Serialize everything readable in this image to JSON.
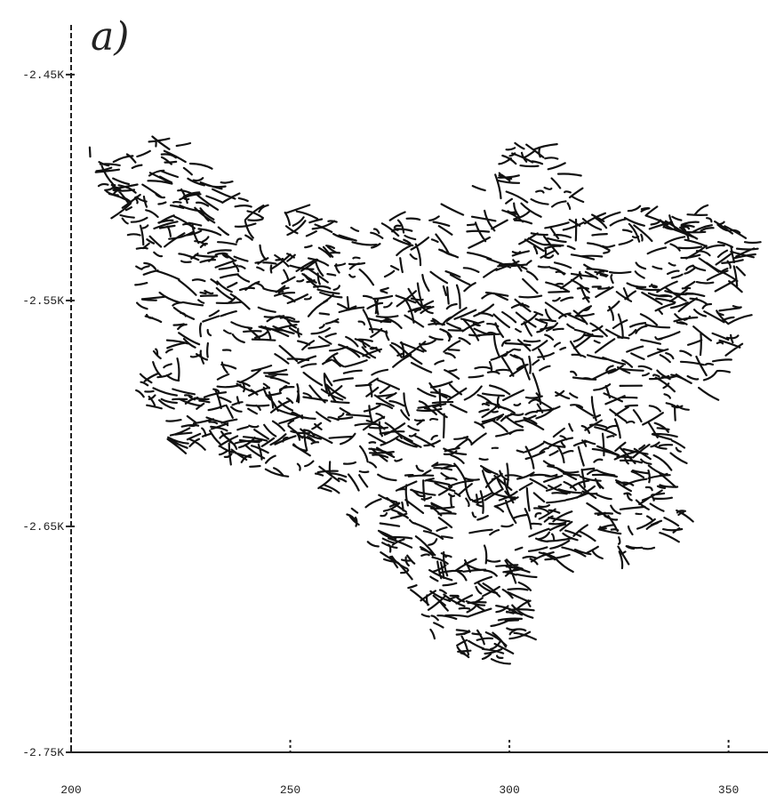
{
  "map": {
    "panel_label": "a)",
    "xlim": [
      200,
      359
    ],
    "ylim": [
      -2750,
      -2428
    ],
    "xticks": [
      200,
      250,
      300,
      350
    ],
    "yticks": [
      {
        "value": -2450,
        "label": "-2.45K"
      },
      {
        "value": -2550,
        "label": "-2.55K"
      },
      {
        "value": -2650,
        "label": "-2.65K"
      },
      {
        "value": -2750,
        "label": "-2.75K"
      }
    ]
  }
}
